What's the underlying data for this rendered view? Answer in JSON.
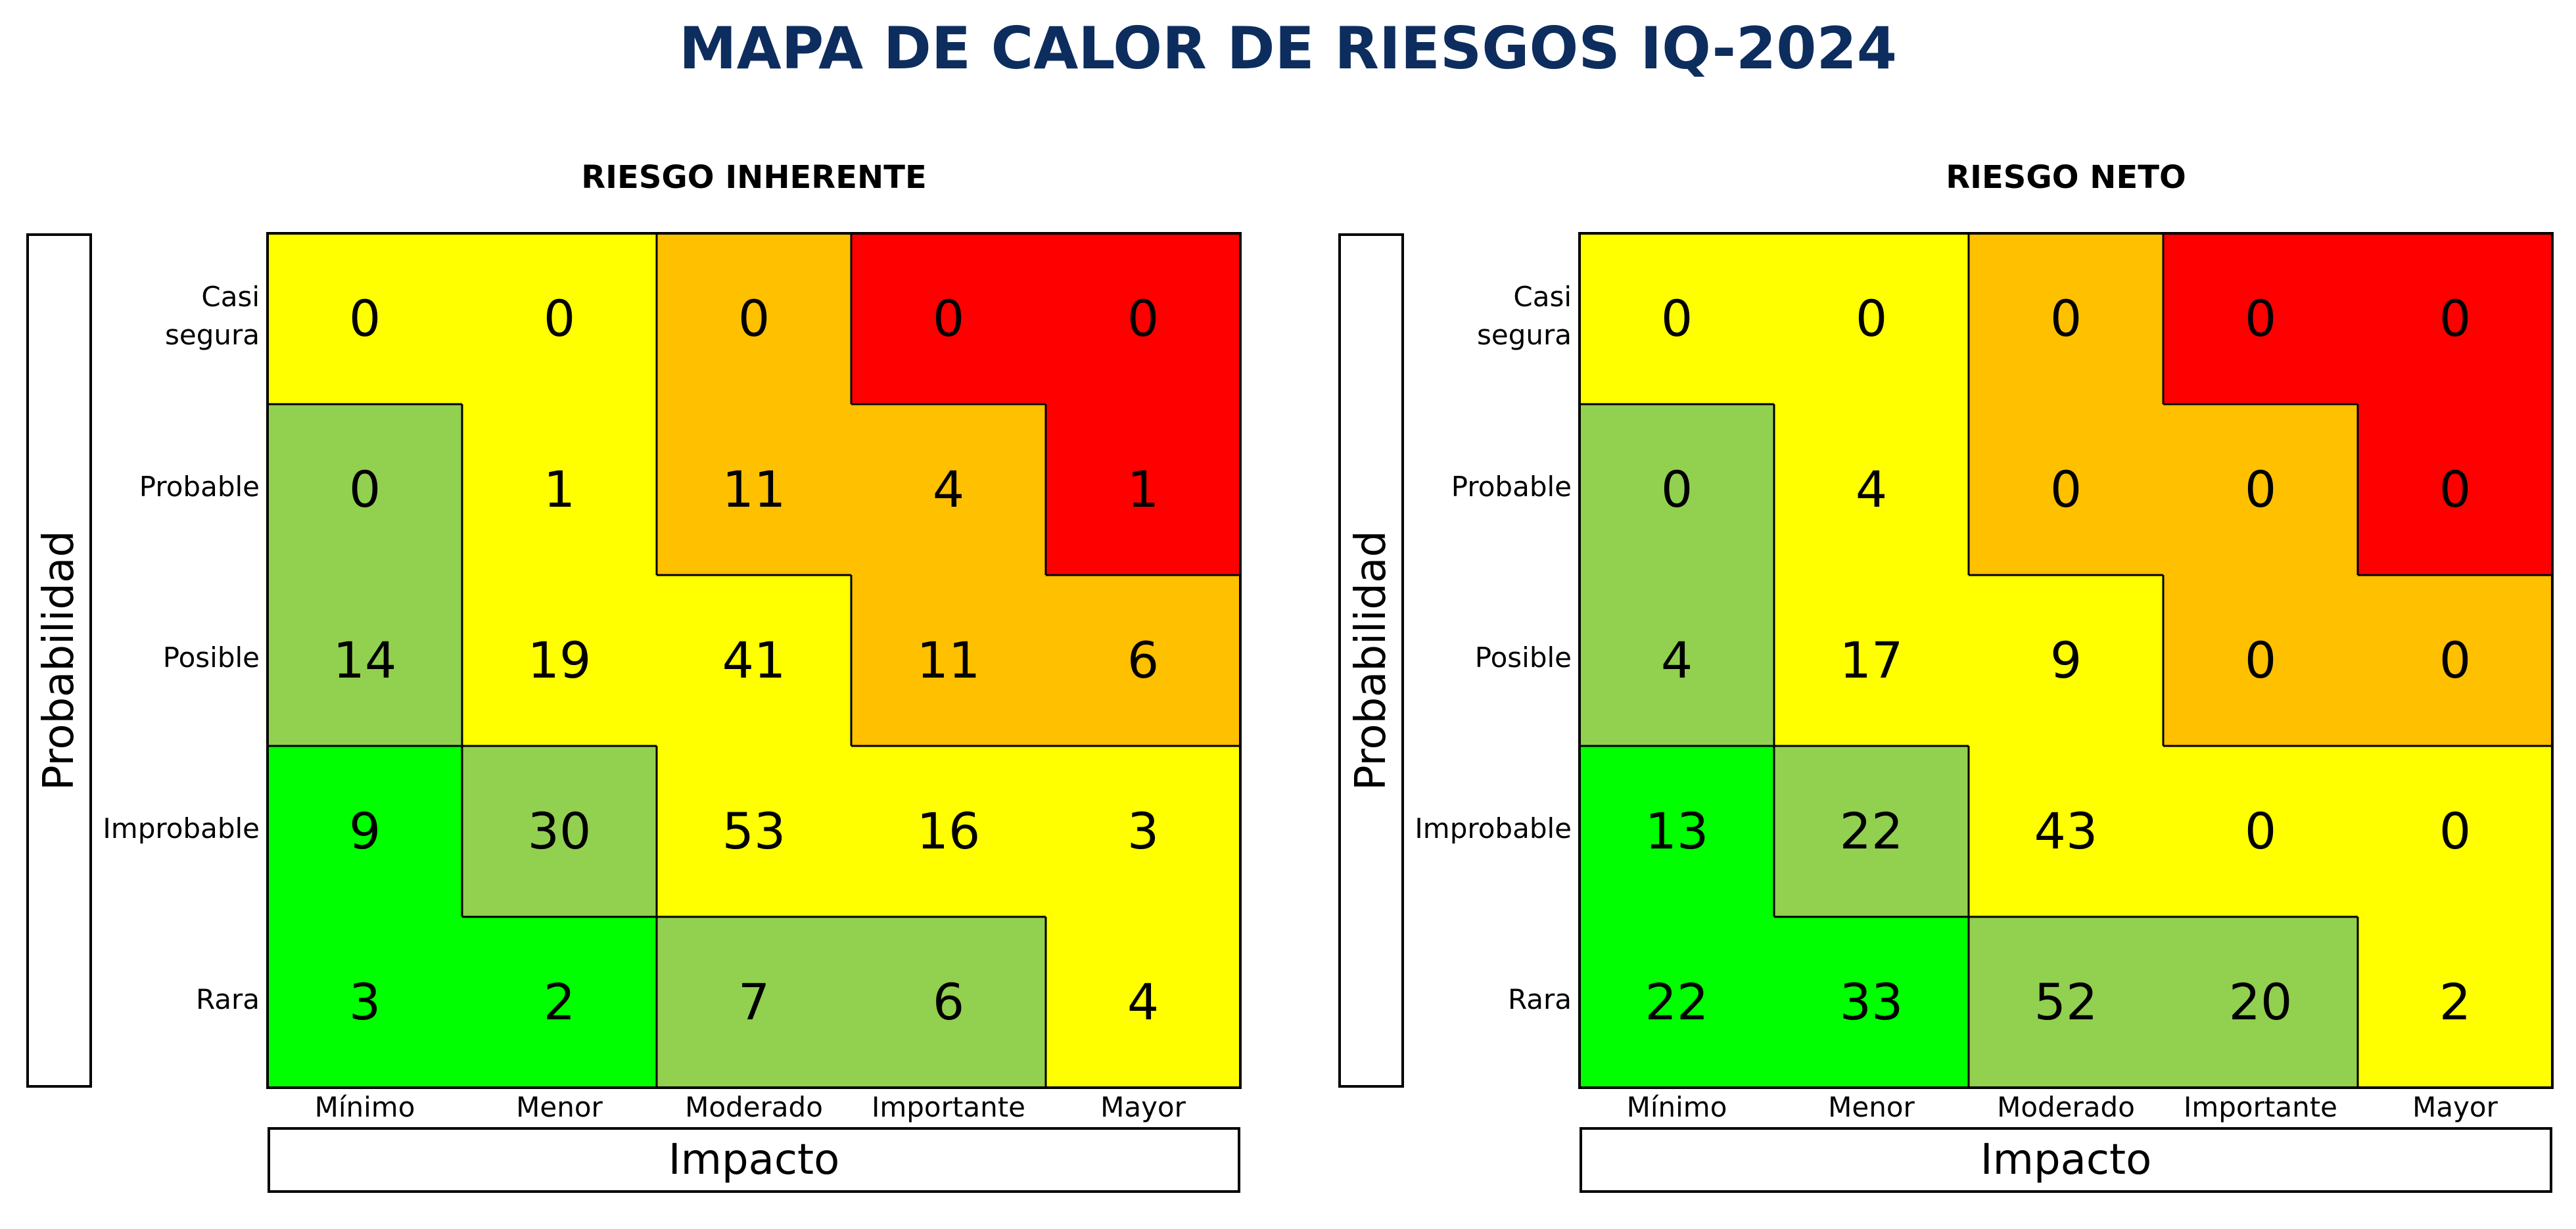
{
  "title": "MAPA DE CALOR DE RIESGOS IQ-2024",
  "colors": {
    "red": "#ff0000",
    "orange": "#ffc000",
    "yellow": "#ffff00",
    "light_green": "#92d050",
    "green": "#00ff00"
  },
  "chart_data": [
    {
      "type": "heatmap",
      "title": "RIESGO INHERENTE",
      "xlabel": "Impacto",
      "ylabel": "Probabilidad",
      "x_categories": [
        "Mínimo",
        "Menor",
        "Moderado",
        "Importante",
        "Mayor"
      ],
      "y_categories": [
        "Casi segura",
        "Probable",
        "Posible",
        "Improbable",
        "Rara"
      ],
      "values": [
        [
          0,
          0,
          0,
          0,
          0
        ],
        [
          0,
          1,
          11,
          4,
          1
        ],
        [
          14,
          19,
          41,
          11,
          6
        ],
        [
          9,
          30,
          53,
          16,
          3
        ],
        [
          3,
          2,
          7,
          6,
          4
        ]
      ],
      "zones": [
        [
          "yellow",
          "yellow",
          "orange",
          "red",
          "red"
        ],
        [
          "light_green",
          "yellow",
          "orange",
          "orange",
          "red"
        ],
        [
          "light_green",
          "yellow",
          "yellow",
          "orange",
          "orange"
        ],
        [
          "green",
          "light_green",
          "yellow",
          "yellow",
          "yellow"
        ],
        [
          "green",
          "green",
          "light_green",
          "light_green",
          "yellow"
        ]
      ]
    },
    {
      "type": "heatmap",
      "title": "RIESGO NETO",
      "xlabel": "Impacto",
      "ylabel": "Probabilidad",
      "x_categories": [
        "Mínimo",
        "Menor",
        "Moderado",
        "Importante",
        "Mayor"
      ],
      "y_categories": [
        "Casi segura",
        "Probable",
        "Posible",
        "Improbable",
        "Rara"
      ],
      "values": [
        [
          0,
          0,
          0,
          0,
          0
        ],
        [
          0,
          4,
          0,
          0,
          0
        ],
        [
          4,
          17,
          9,
          0,
          0
        ],
        [
          13,
          22,
          43,
          0,
          0
        ],
        [
          22,
          33,
          52,
          20,
          2
        ]
      ],
      "zones": [
        [
          "yellow",
          "yellow",
          "orange",
          "red",
          "red"
        ],
        [
          "light_green",
          "yellow",
          "orange",
          "orange",
          "red"
        ],
        [
          "light_green",
          "yellow",
          "yellow",
          "orange",
          "orange"
        ],
        [
          "green",
          "light_green",
          "yellow",
          "yellow",
          "yellow"
        ],
        [
          "green",
          "green",
          "light_green",
          "light_green",
          "yellow"
        ]
      ]
    }
  ]
}
